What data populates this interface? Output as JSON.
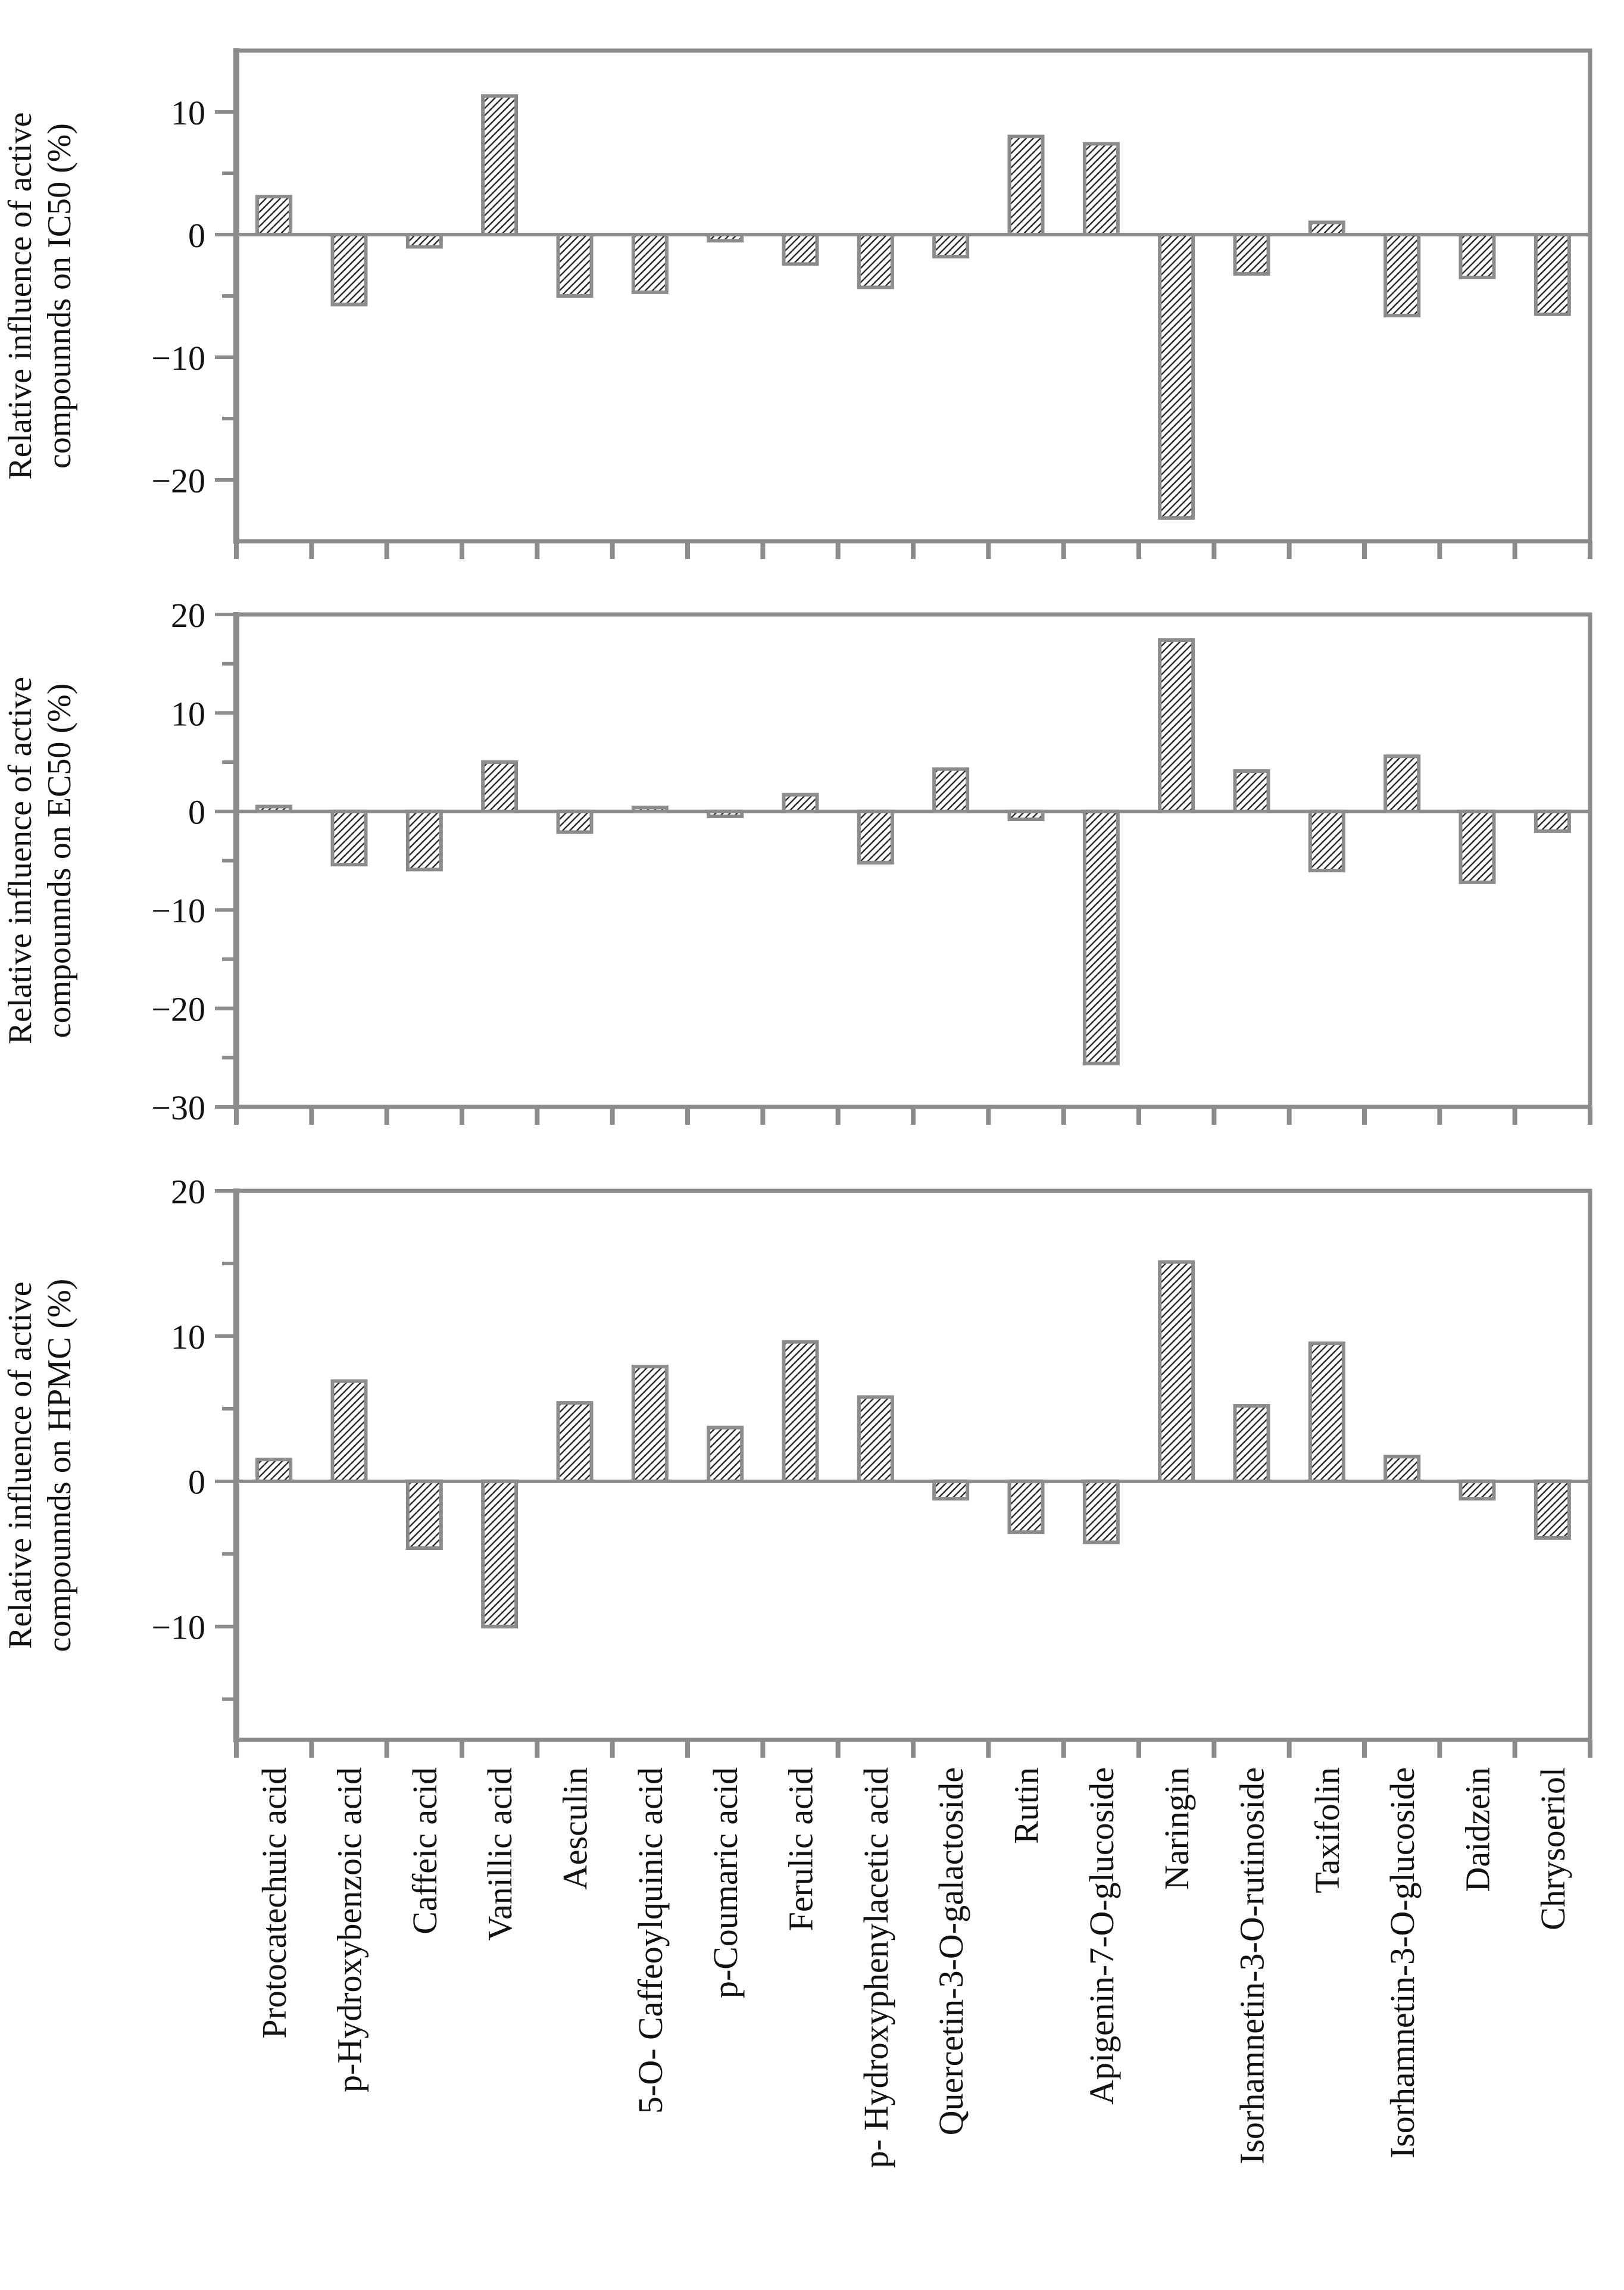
{
  "figure": {
    "description": "Three stacked hatched bar-chart panels sharing one categorical x-axis of phenolic compound names",
    "background": "#ffffff"
  },
  "colors": {
    "frame_gray": "#8c8c8c",
    "bar_outline": "#8c8c8c",
    "bar_fill": "#ffffff",
    "hatch_line": "#2b2b2b",
    "text": "#111111"
  },
  "chart_data": [
    {
      "type": "bar",
      "panel": "top",
      "title": "",
      "xlabel": "",
      "ylabel": "Relative influence of active compounnds on IC50 (%)",
      "ylabel_lines": [
        "Relative influence of active",
        "compounnds on IC50 (%)"
      ],
      "categories": [
        "Protocatechuic acid",
        "p-Hydroxybenzoic acid",
        "Caffeic acid",
        "Vanillic acid",
        "Aesculin",
        "5-O- Caffeoylquinic acid",
        "p-Coumaric acid",
        "Ferulic acid",
        "p- Hydroxyphenylacetic acid",
        "Quercetin-3-O-galactoside",
        "Rutin",
        "Apigenin-7-O-glucoside",
        "Naringin",
        "Isorhamnetin-3-O-rutinoside",
        "Taxifolin",
        "Isorhamnetin-3-O-glucoside",
        "Daidzein",
        "Chrysoeriol"
      ],
      "values": [
        3.1,
        -5.7,
        -1.0,
        11.3,
        -5.0,
        -4.7,
        -0.5,
        -2.4,
        -4.3,
        -1.8,
        8.0,
        7.4,
        -23.1,
        -3.2,
        1.0,
        -6.6,
        -3.5,
        -6.5
      ],
      "ylim": [
        -25,
        15
      ],
      "yticks": [
        10,
        0,
        -10,
        -20
      ],
      "yticks_minor": [
        5,
        -5,
        -15
      ],
      "grid": false,
      "legend": null,
      "bar_style": "white fill with dark diagonal hatch and gray outline"
    },
    {
      "type": "bar",
      "panel": "middle",
      "title": "",
      "xlabel": "",
      "ylabel": "Relative influence of active compounnds on EC50 (%)",
      "ylabel_lines": [
        "Relative influence of active",
        "compounnds on EC50 (%)"
      ],
      "categories": [
        "Protocatechuic acid",
        "p-Hydroxybenzoic acid",
        "Caffeic acid",
        "Vanillic acid",
        "Aesculin",
        "5-O- Caffeoylquinic acid",
        "p-Coumaric acid",
        "Ferulic acid",
        "p- Hydroxyphenylacetic acid",
        "Quercetin-3-O-galactoside",
        "Rutin",
        "Apigenin-7-O-glucoside",
        "Naringin",
        "Isorhamnetin-3-O-rutinoside",
        "Taxifolin",
        "Isorhamnetin-3-O-glucoside",
        "Daidzein",
        "Chrysoeriol"
      ],
      "values": [
        0.5,
        -5.4,
        -5.9,
        5.0,
        -2.1,
        0.4,
        -0.5,
        1.7,
        -5.2,
        4.3,
        -0.8,
        -25.6,
        17.4,
        4.1,
        -6.0,
        5.6,
        -7.2,
        -2.0
      ],
      "ylim": [
        -30,
        20
      ],
      "yticks": [
        20,
        10,
        0,
        -10,
        -20,
        -30
      ],
      "yticks_minor": [
        15,
        5,
        -5,
        -15,
        -25
      ],
      "grid": false,
      "legend": null,
      "bar_style": "white fill with dark diagonal hatch and gray outline"
    },
    {
      "type": "bar",
      "panel": "bottom",
      "title": "",
      "xlabel": "",
      "ylabel": "Relative influence of active compounnds on HPMC (%)",
      "ylabel_lines": [
        "Relative influence of active",
        "compounnds on HPMC (%)"
      ],
      "categories": [
        "Protocatechuic acid",
        "p-Hydroxybenzoic acid",
        "Caffeic acid",
        "Vanillic acid",
        "Aesculin",
        "5-O- Caffeoylquinic acid",
        "p-Coumaric acid",
        "Ferulic acid",
        "p- Hydroxyphenylacetic acid",
        "Quercetin-3-O-galactoside",
        "Rutin",
        "Apigenin-7-O-glucoside",
        "Naringin",
        "Isorhamnetin-3-O-rutinoside",
        "Taxifolin",
        "Isorhamnetin-3-O-glucoside",
        "Daidzein",
        "Chrysoeriol"
      ],
      "values": [
        1.5,
        6.9,
        -4.6,
        -10.0,
        5.4,
        7.9,
        3.7,
        9.6,
        5.8,
        -1.2,
        -3.5,
        -4.2,
        15.1,
        5.2,
        9.5,
        1.7,
        -1.2,
        -3.9
      ],
      "ylim": [
        -17.8,
        20
      ],
      "yticks": [
        20,
        10,
        0,
        -10
      ],
      "yticks_minor": [
        15,
        5,
        -5,
        -15
      ],
      "grid": false,
      "legend": null,
      "bar_style": "white fill with dark diagonal hatch and gray outline"
    }
  ]
}
